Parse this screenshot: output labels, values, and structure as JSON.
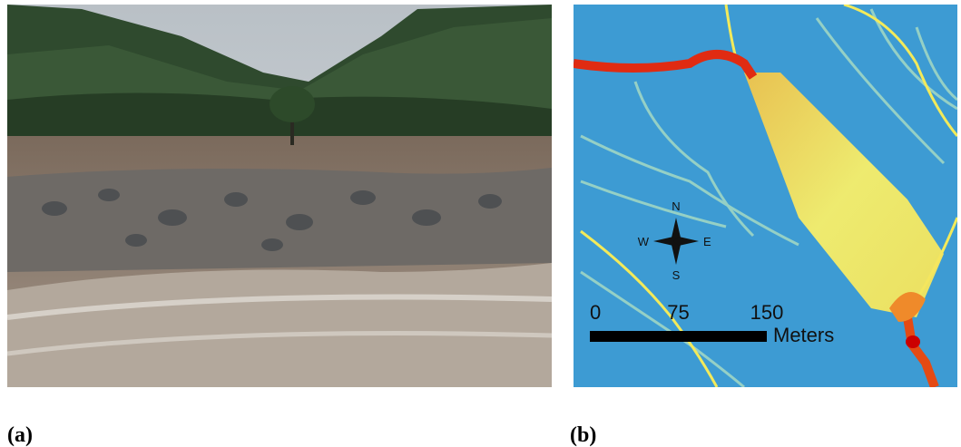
{
  "panels": [
    {
      "caption": "(a)"
    },
    {
      "caption": "(b)",
      "compass": {
        "north": "N",
        "south": "S",
        "east": "E",
        "west": "W"
      },
      "scale_bar": {
        "ticks": [
          0,
          75,
          150
        ],
        "unit": "Meters"
      }
    }
  ]
}
